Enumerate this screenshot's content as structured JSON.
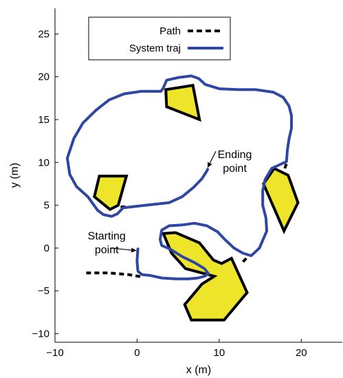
{
  "chart_data": {
    "type": "line",
    "xlabel": "x (m)",
    "ylabel": "y (m)",
    "xlim": [
      -10,
      25
    ],
    "ylim": [
      -11,
      28
    ],
    "xticks": [
      -10,
      0,
      10,
      20
    ],
    "yticks": [
      -10,
      -5,
      0,
      5,
      10,
      15,
      20,
      25
    ],
    "grid": false,
    "legend": {
      "placement": "top-center"
    },
    "series": [
      {
        "name": "Path",
        "style": "dashed",
        "color": "#000000",
        "segments": [
          [
            [
              -6.2,
              -2.9
            ],
            [
              -3.5,
              -2.9
            ],
            [
              -1.0,
              -3.1
            ],
            [
              0.8,
              -3.4
            ]
          ],
          [
            [
              -2.0,
              4.8
            ],
            [
              -1.2,
              4.8
            ]
          ],
          [
            [
              12.9,
              -1.6
            ],
            [
              13.5,
              -1.0
            ]
          ],
          [
            [
              18.0,
              9.3
            ],
            [
              18.2,
              9.9
            ]
          ]
        ]
      },
      {
        "name": "System traj",
        "style": "solid",
        "color": "#2f46a3",
        "points": [
          [
            0.1,
            -0.1
          ],
          [
            0.0,
            -1.5
          ],
          [
            0.1,
            -2.7
          ],
          [
            0.6,
            -3.1
          ],
          [
            1.6,
            -3.2
          ],
          [
            3.0,
            -3.5
          ],
          [
            4.8,
            -3.6
          ],
          [
            6.3,
            -3.6
          ],
          [
            7.4,
            -3.5
          ],
          [
            8.2,
            -3.3
          ],
          [
            8.7,
            -3.0
          ],
          [
            8.2,
            -2.4
          ],
          [
            7.0,
            -1.7
          ],
          [
            5.5,
            -1.0
          ],
          [
            4.0,
            -0.1
          ],
          [
            3.0,
            0.3
          ],
          [
            2.8,
            1.0
          ],
          [
            3.0,
            2.1
          ],
          [
            3.9,
            2.6
          ],
          [
            5.5,
            2.7
          ],
          [
            7.0,
            2.9
          ],
          [
            8.5,
            2.6
          ],
          [
            9.8,
            1.9
          ],
          [
            10.8,
            0.9
          ],
          [
            11.8,
            0.0
          ],
          [
            12.9,
            -0.6
          ],
          [
            13.9,
            -0.9
          ],
          [
            14.9,
            0.0
          ],
          [
            15.8,
            2.0
          ],
          [
            15.7,
            3.5
          ],
          [
            15.3,
            5.0
          ],
          [
            15.3,
            6.7
          ],
          [
            15.6,
            8.0
          ],
          [
            16.4,
            9.3
          ],
          [
            17.3,
            9.7
          ],
          [
            18.2,
            10.1
          ],
          [
            18.3,
            11.4
          ],
          [
            18.5,
            12.7
          ],
          [
            18.8,
            14.0
          ],
          [
            18.8,
            15.5
          ],
          [
            18.5,
            16.6
          ],
          [
            17.8,
            17.6
          ],
          [
            16.6,
            18.2
          ],
          [
            14.4,
            18.5
          ],
          [
            12.3,
            18.5
          ],
          [
            10.0,
            18.6
          ],
          [
            8.3,
            19.1
          ],
          [
            7.5,
            19.8
          ],
          [
            6.6,
            20.1
          ],
          [
            5.0,
            19.9
          ],
          [
            3.6,
            19.6
          ],
          [
            3.2,
            18.7
          ],
          [
            2.9,
            18.3
          ],
          [
            0.5,
            18.3
          ],
          [
            -1.6,
            18.0
          ],
          [
            -3.4,
            17.3
          ],
          [
            -5.0,
            16.1
          ],
          [
            -6.6,
            14.6
          ],
          [
            -7.7,
            12.8
          ],
          [
            -8.5,
            10.5
          ],
          [
            -8.2,
            8.6
          ],
          [
            -7.4,
            7.2
          ],
          [
            -6.0,
            6.0
          ],
          [
            -5.4,
            5.2
          ],
          [
            -4.8,
            4.4
          ],
          [
            -4.1,
            3.9
          ],
          [
            -3.1,
            3.7
          ],
          [
            -2.4,
            4.0
          ],
          [
            -1.7,
            4.7
          ],
          [
            0.1,
            4.9
          ],
          [
            2.0,
            5.1
          ],
          [
            3.9,
            5.3
          ],
          [
            5.5,
            6.0
          ],
          [
            6.9,
            7.1
          ],
          [
            7.9,
            8.1
          ],
          [
            8.5,
            9.0
          ],
          [
            8.6,
            9.2
          ]
        ]
      }
    ],
    "obstacles": [
      {
        "color": "#eee52a",
        "points": [
          [
            3.5,
            18.5
          ],
          [
            6.8,
            19.0
          ],
          [
            7.6,
            15.0
          ],
          [
            3.6,
            16.5
          ]
        ]
      },
      {
        "color": "#eee52a",
        "points": [
          [
            -4.6,
            8.4
          ],
          [
            -1.3,
            8.4
          ],
          [
            -2.3,
            5.0
          ],
          [
            -3.3,
            4.5
          ],
          [
            -5.2,
            6.0
          ]
        ]
      },
      {
        "color": "#eee52a",
        "points": [
          [
            16.7,
            9.3
          ],
          [
            18.4,
            8.5
          ],
          [
            19.6,
            5.3
          ],
          [
            17.9,
            2.0
          ],
          [
            15.4,
            7.5
          ]
        ]
      },
      {
        "color": "#eee52a",
        "points": [
          [
            3.2,
            1.7
          ],
          [
            4.7,
            1.8
          ],
          [
            7.6,
            0.6
          ],
          [
            9.3,
            -1.4
          ],
          [
            10.3,
            -1.8
          ],
          [
            11.5,
            -1.2
          ],
          [
            13.4,
            -5.2
          ],
          [
            10.6,
            -8.4
          ],
          [
            6.6,
            -8.4
          ],
          [
            5.8,
            -6.6
          ],
          [
            7.9,
            -4.2
          ],
          [
            9.4,
            -3.3
          ],
          [
            5.9,
            -2.4
          ],
          [
            4.2,
            -0.6
          ]
        ]
      }
    ],
    "annotations": [
      {
        "lines": [
          "Ending",
          "point"
        ],
        "text_at": [
          11.9,
          10.5
        ],
        "arrow_from": [
          9.6,
          11.3
        ],
        "arrow_to": [
          8.6,
          9.4
        ]
      },
      {
        "lines": [
          "Starting",
          "point"
        ],
        "text_at": [
          -3.7,
          1.0
        ],
        "arrow_from": [
          -3.2,
          0.0
        ],
        "arrow_to": [
          -0.1,
          -0.3
        ]
      }
    ]
  }
}
